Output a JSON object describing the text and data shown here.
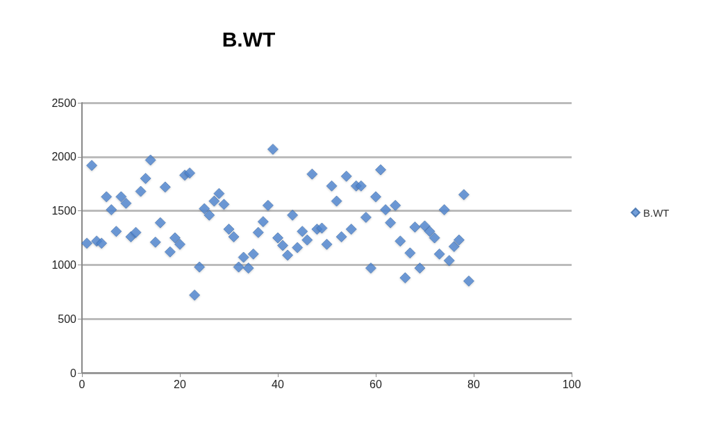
{
  "chart_data": {
    "type": "scatter",
    "title": "B.WT",
    "x": [
      1,
      2,
      3,
      4,
      5,
      6,
      7,
      8,
      9,
      10,
      11,
      12,
      13,
      14,
      15,
      16,
      17,
      18,
      19,
      20,
      21,
      22,
      23,
      24,
      25,
      26,
      27,
      28,
      29,
      30,
      31,
      32,
      33,
      34,
      35,
      36,
      37,
      38,
      39,
      40,
      41,
      42,
      43,
      44,
      45,
      46,
      47,
      48,
      49,
      50,
      51,
      52,
      53,
      54,
      55,
      56,
      57,
      58,
      59,
      60,
      61,
      62,
      63,
      64,
      65,
      66,
      67,
      68,
      69,
      70,
      71,
      72,
      73,
      74,
      75,
      76,
      77,
      78,
      79
    ],
    "series": [
      {
        "name": "B.WT",
        "color": "#4f86d0",
        "values": [
          1200,
          1920,
          1220,
          1200,
          1630,
          1510,
          1310,
          1630,
          1570,
          1260,
          1300,
          1680,
          1800,
          1970,
          1210,
          1390,
          1720,
          1120,
          1250,
          1190,
          1830,
          1850,
          720,
          980,
          1520,
          1460,
          1590,
          1660,
          1560,
          1330,
          1260,
          980,
          1070,
          970,
          1100,
          1300,
          1400,
          1550,
          2070,
          1250,
          1180,
          1090,
          1460,
          1160,
          1310,
          1230,
          1840,
          1330,
          1340,
          1190,
          1730,
          1590,
          1260,
          1820,
          1330,
          1730,
          1730,
          1440,
          970,
          1630,
          1880,
          1510,
          1390,
          1550,
          1220,
          880,
          1110,
          1350,
          970,
          1360,
          1310,
          1250,
          1100,
          1510,
          1040,
          1170,
          1230,
          1650,
          850
        ]
      }
    ],
    "xlim": [
      0,
      100
    ],
    "xticks": [
      0,
      20,
      40,
      60,
      80,
      100
    ],
    "ylim": [
      0,
      2500
    ],
    "yticks": [
      0,
      500,
      1000,
      1500,
      2000,
      2500
    ],
    "grid": "y",
    "legend": "right",
    "marker": "diamond"
  }
}
